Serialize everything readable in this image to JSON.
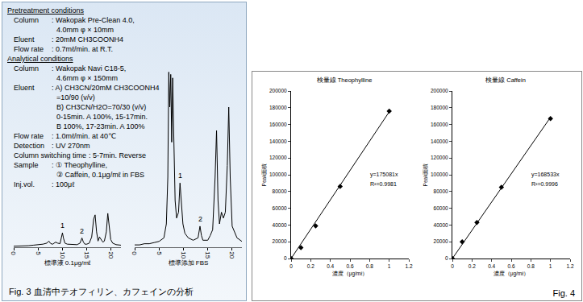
{
  "document": {
    "pretreatment": {
      "heading": "Pretreatment conditions",
      "rows": [
        {
          "label": "Column",
          "lines": [
            ": Wakopak Pre-Clean 4.0,",
            "4.0mm φ × 10mm"
          ]
        },
        {
          "label": "Eluent",
          "lines": [
            ": 20mM CH3COONH4"
          ]
        },
        {
          "label": "Flow rate",
          "lines": [
            ": 0.7mℓ/min. at R.T."
          ]
        }
      ]
    },
    "analytical": {
      "heading": "Analytical conditions",
      "rows": [
        {
          "label": "Column",
          "lines": [
            ": Wakopak Navi C18-5,",
            "4.6mm φ × 150mm"
          ]
        },
        {
          "label": "Eluent",
          "lines": [
            ": A) CH3CN/20mM CH3COONH4",
            "=10/90 (v/v)",
            "B) CH3CN/H2O=70/30 (v/v)",
            "0-15min. A 100%, 15-17min.",
            "B 100%, 17-23min. A 100%"
          ]
        },
        {
          "label": "Flow rate",
          "lines": [
            ": 1.0mℓ/min. at 40℃"
          ]
        },
        {
          "label": "Detection",
          "lines": [
            ": UV 270nm"
          ]
        },
        {
          "label": "Column switching time",
          "lines": [
            ": 5-7min. Reverse"
          ]
        },
        {
          "label": "Sample",
          "lines": [
            ": ① Theophylline,",
            "② Caffein, 0.1μg/mℓ in FBS"
          ]
        },
        {
          "label": "Inj.vol.",
          "lines": [
            ": 100μℓ"
          ]
        }
      ]
    },
    "fig3_caption": "Fig. 3  血清中テオフィリン、カフェインの分析",
    "fig4_caption": "Fig. 4"
  },
  "chart_data": [
    {
      "type": "line",
      "x_label": "標準液 0.1μg/mℓ",
      "color": "#000000",
      "grid": false,
      "tick_labels": "x",
      "x": [
        0,
        1,
        2,
        3,
        4,
        5,
        6,
        6.8,
        7.2,
        7.6,
        8,
        8.6,
        9,
        9.5,
        9.8,
        10,
        10.2,
        10.5,
        11,
        12,
        13,
        13.6,
        14,
        14.3,
        14.6,
        15,
        15.5,
        16,
        16.4,
        16.7,
        17,
        17.3,
        17.6,
        18,
        18.3,
        18.6,
        19,
        19.3,
        19.6,
        19.9,
        20.3,
        21,
        22
      ],
      "values": [
        2,
        2,
        3,
        3,
        4,
        5,
        6,
        8,
        12,
        7,
        6,
        10,
        8,
        7,
        20,
        28,
        18,
        8,
        6,
        5,
        5,
        8,
        18,
        10,
        6,
        6,
        8,
        20,
        55,
        63,
        30,
        12,
        20,
        14,
        10,
        12,
        30,
        66,
        40,
        15,
        8,
        5,
        4
      ],
      "peak_labels": [
        {
          "x": 10,
          "y": 28,
          "label": "1"
        },
        {
          "x": 14,
          "y": 18,
          "label": "2"
        }
      ],
      "xlim": [
        0,
        22
      ],
      "xticks": [
        0,
        5,
        10,
        15,
        20
      ],
      "ylim": [
        0,
        160
      ]
    },
    {
      "type": "line",
      "x_label": "標準添加 FBS",
      "color": "#000000",
      "grid": false,
      "tick_labels": "x",
      "x": [
        0,
        1,
        2,
        3,
        4,
        5,
        6,
        6.5,
        6.8,
        7,
        7.2,
        7.4,
        7.6,
        7.8,
        8,
        8.3,
        8.6,
        9,
        9.3,
        9.6,
        9.9,
        10.3,
        11,
        12,
        13,
        13.4,
        13.7,
        14,
        15,
        15.5,
        16,
        16.5,
        16.8,
        17.1,
        17.4,
        17.8,
        18.2,
        18.6,
        19,
        19.3,
        19.6,
        20,
        21,
        22
      ],
      "values": [
        2,
        2,
        3,
        3,
        4,
        5,
        8,
        20,
        60,
        150,
        120,
        148,
        90,
        145,
        100,
        40,
        25,
        30,
        55,
        38,
        20,
        12,
        8,
        6,
        8,
        18,
        10,
        6,
        6,
        10,
        15,
        60,
        100,
        40,
        20,
        30,
        25,
        30,
        70,
        120,
        60,
        18,
        8,
        5
      ],
      "peak_labels": [
        {
          "x": 9.3,
          "y": 55,
          "label": "1"
        },
        {
          "x": 13.4,
          "y": 18,
          "label": "2"
        }
      ],
      "xlim": [
        0,
        22
      ],
      "xticks": [
        0,
        5,
        10,
        15,
        20
      ],
      "ylim": [
        0,
        160
      ]
    },
    {
      "type": "scatter",
      "title": "検量線 Theophylline",
      "x_label": "濃度（μg/mℓ）",
      "y_label": "Peak面積",
      "grid": false,
      "series": [
        {
          "type": "scatter",
          "marker": "diamond",
          "color": "#000000",
          "x": [
            0,
            0.1,
            0.25,
            0.5,
            1
          ],
          "values": [
            0,
            13000,
            39000,
            86000,
            176000
          ]
        },
        {
          "type": "line",
          "color": "#000000",
          "x": [
            0,
            1
          ],
          "values": [
            0,
            175081
          ]
        }
      ],
      "annotations": [
        "y=175081x",
        "R²=0.9981"
      ],
      "xlim": [
        0,
        1.2
      ],
      "xticks": [
        0,
        0.2,
        0.4,
        0.6,
        0.8,
        1,
        1.2
      ],
      "ylim": [
        0,
        200000
      ],
      "yticks": [
        0,
        20000,
        40000,
        60000,
        80000,
        100000,
        120000,
        140000,
        160000,
        180000,
        200000
      ]
    },
    {
      "type": "scatter",
      "title": "検量線 Caffein",
      "x_label": "濃度（μg/mℓ）",
      "y_label": "Peak面積",
      "grid": false,
      "series": [
        {
          "type": "scatter",
          "marker": "diamond",
          "color": "#000000",
          "x": [
            0,
            0.1,
            0.25,
            0.5,
            1
          ],
          "values": [
            0,
            20000,
            43000,
            85000,
            167000
          ]
        },
        {
          "type": "line",
          "color": "#000000",
          "x": [
            0,
            1
          ],
          "values": [
            0,
            168533
          ]
        }
      ],
      "annotations": [
        "y=168533x",
        "R²=0.9996"
      ],
      "xlim": [
        0,
        1.2
      ],
      "xticks": [
        0,
        0.2,
        0.4,
        0.6,
        0.8,
        1,
        1.2
      ],
      "ylim": [
        0,
        200000
      ],
      "yticks": [
        0,
        20000,
        40000,
        60000,
        80000,
        100000,
        120000,
        140000,
        160000,
        180000,
        200000
      ]
    }
  ]
}
